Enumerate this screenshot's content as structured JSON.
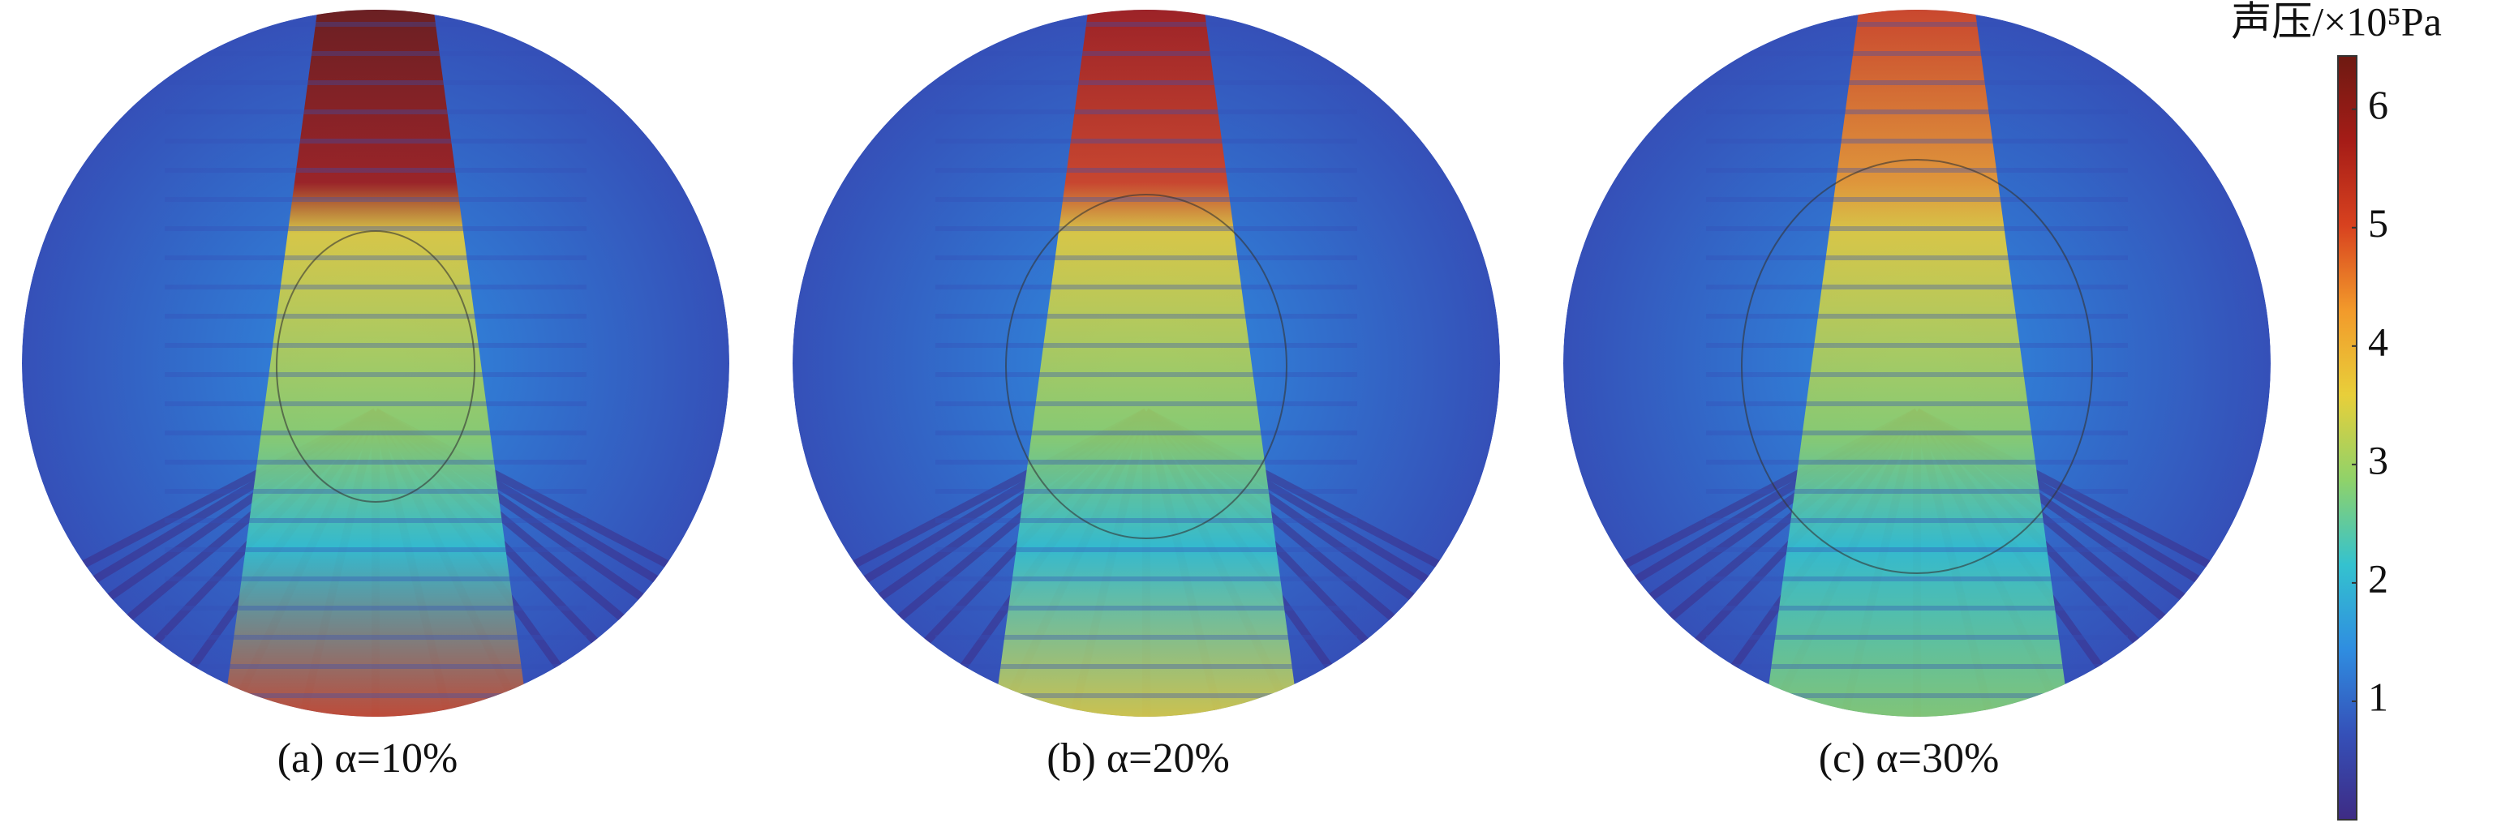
{
  "chart_data": {
    "type": "field-map",
    "panels": [
      {
        "caption": "(a) α=10%"
      },
      {
        "caption": "(b) α=20%"
      },
      {
        "caption": "(c) α=30%"
      }
    ],
    "colorbar": {
      "label": "声压/×10⁵Pa",
      "ylim": [
        0,
        6.45
      ],
      "yticks": [
        1,
        2,
        3,
        4,
        5,
        6
      ],
      "colors": [
        "#3e2b84",
        "#3550b8",
        "#2f8de0",
        "#34c2cf",
        "#8fd26a",
        "#e8cf3a",
        "#f29a2b",
        "#d8421f",
        "#a51c17",
        "#6e1a12"
      ]
    }
  }
}
